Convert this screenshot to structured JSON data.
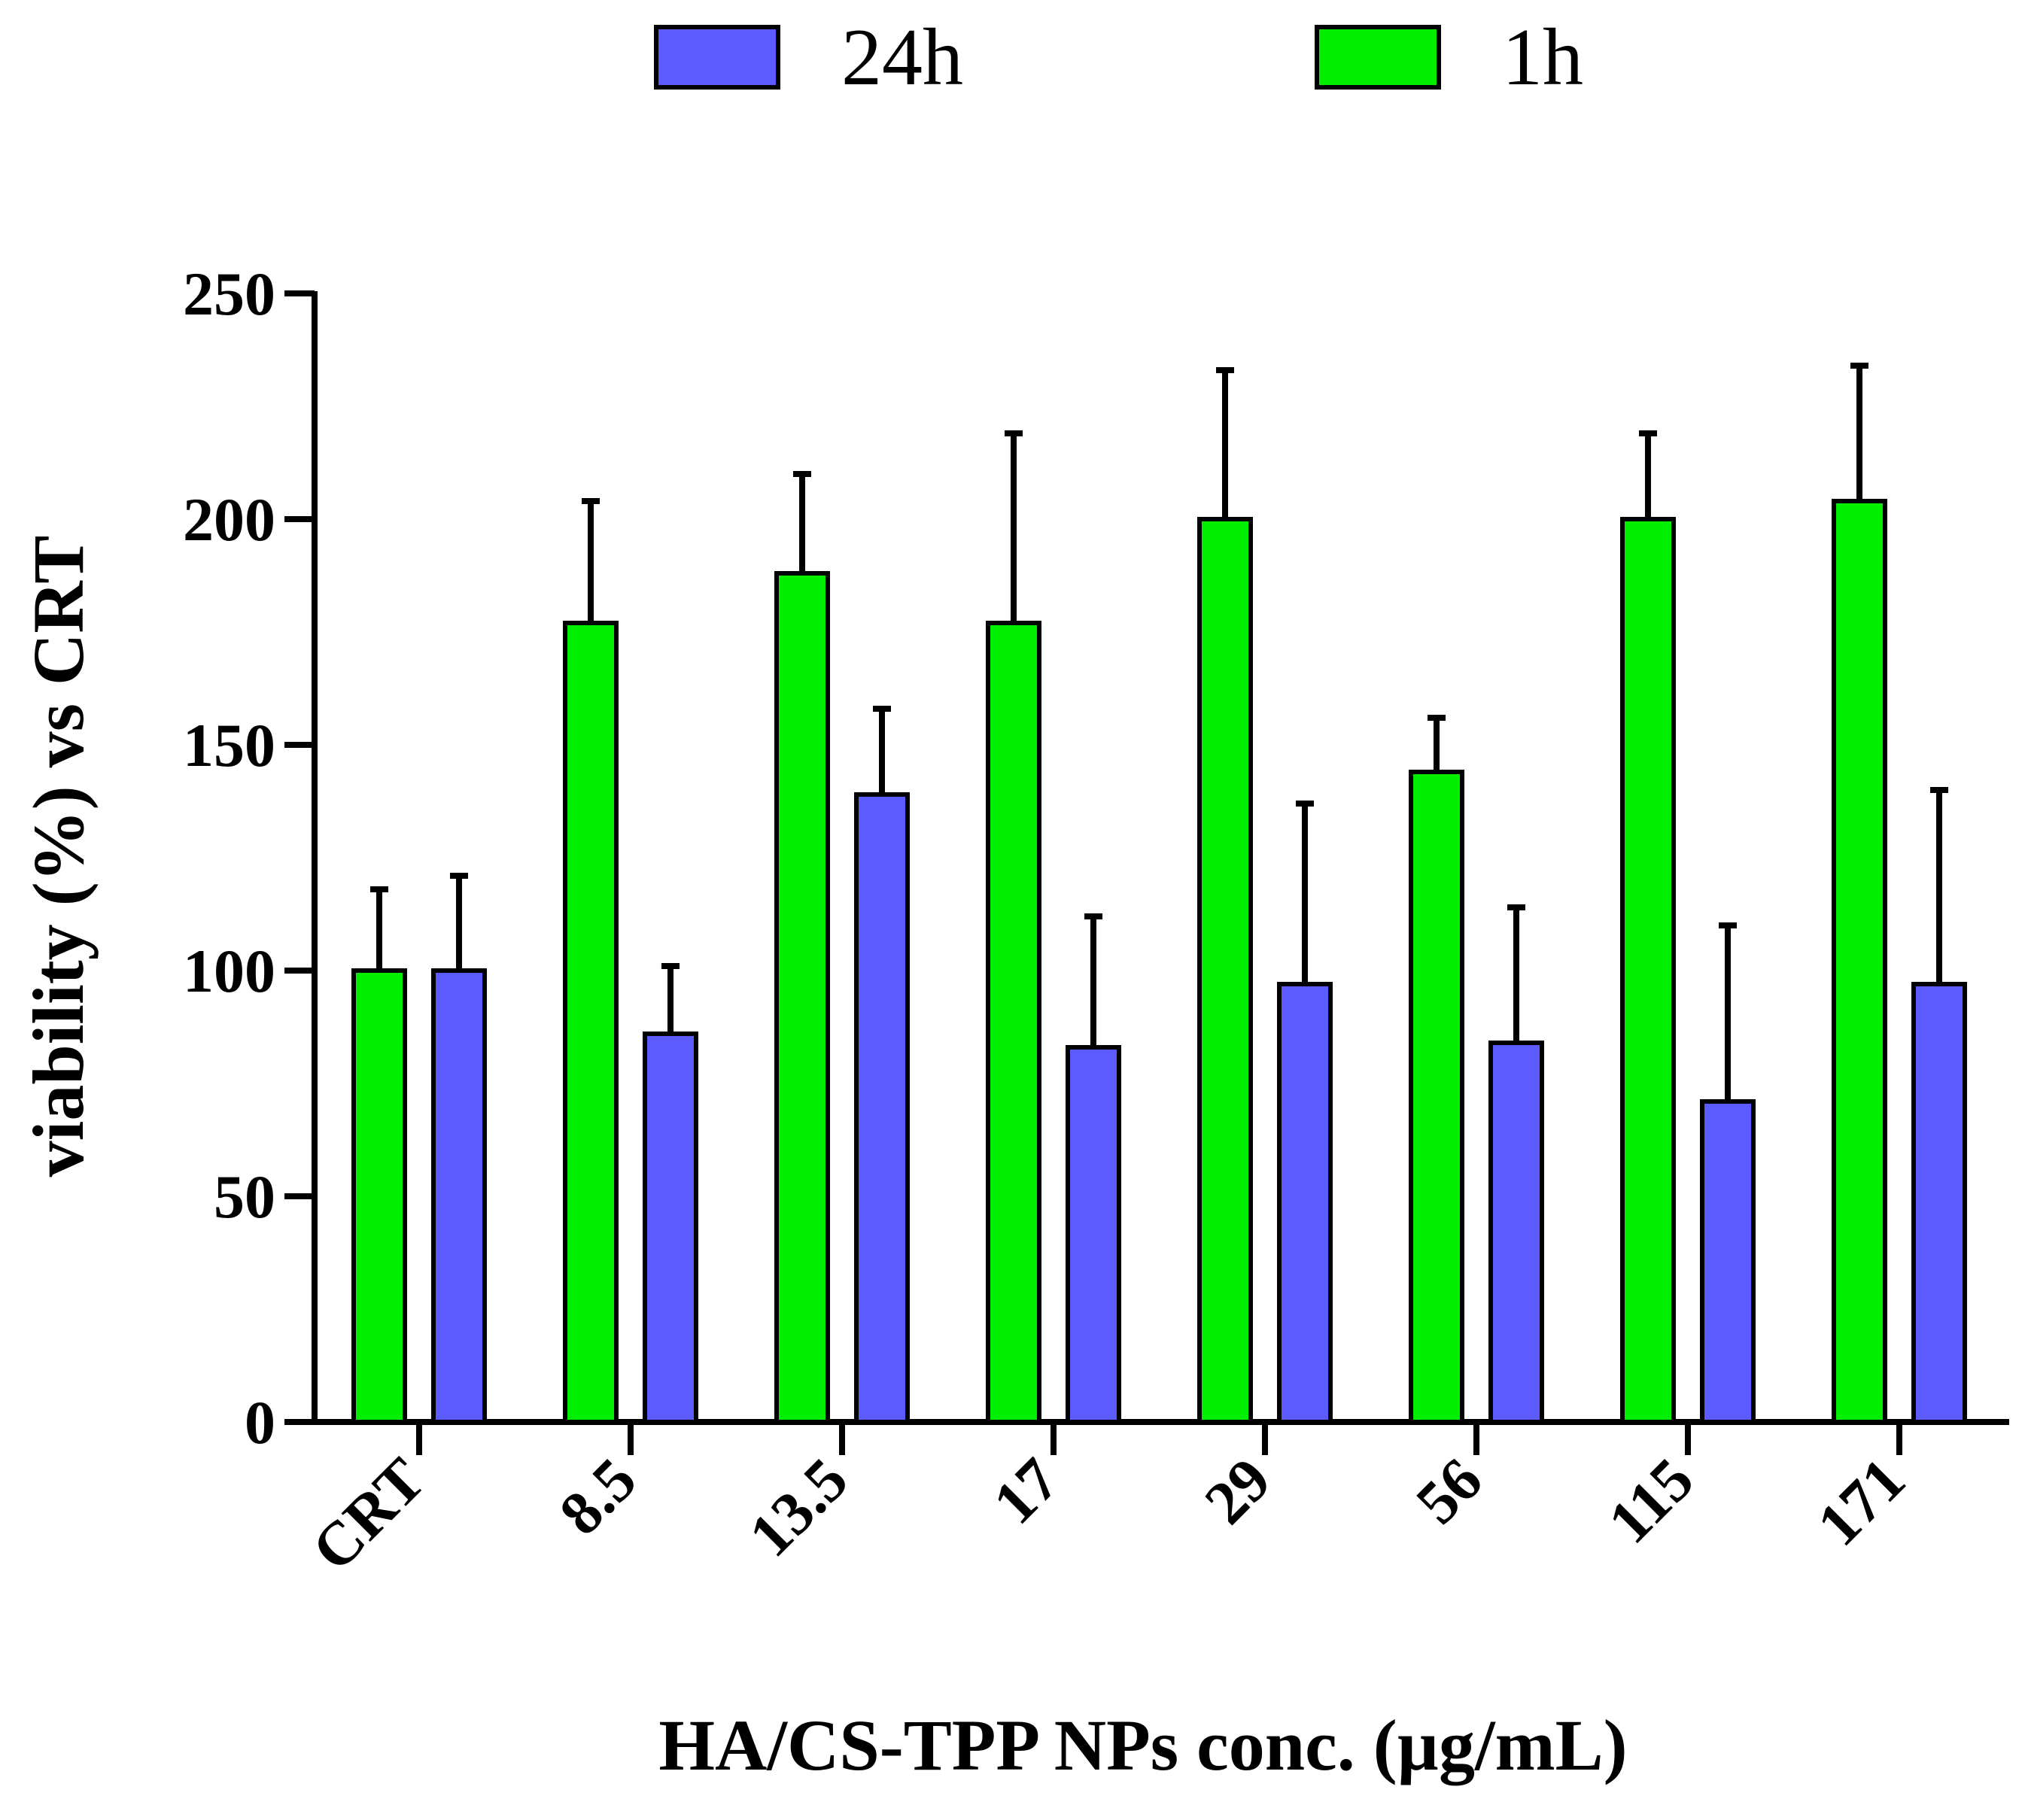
{
  "chart_data": {
    "type": "bar",
    "title": "",
    "xlabel": "HA/CS-TPP NPs conc. (µg/mL)",
    "ylabel": "viability (%) vs CRT",
    "ylim": [
      0,
      250
    ],
    "yticks": [
      0,
      50,
      100,
      150,
      200,
      250
    ],
    "categories": [
      "CRT",
      "8.5",
      "13.5",
      "17",
      "29",
      "56",
      "115",
      "171"
    ],
    "series": [
      {
        "name": "1h",
        "color": "#00ee00",
        "values": [
          100,
          177,
          188,
          177,
          200,
          144,
          200,
          204
        ],
        "errors": [
          18,
          27,
          22,
          42,
          33,
          12,
          19,
          30
        ]
      },
      {
        "name": "24h",
        "color": "#5b5bff",
        "values": [
          100,
          86,
          139,
          83,
          97,
          84,
          71,
          97
        ],
        "errors": [
          21,
          15,
          19,
          29,
          40,
          30,
          39,
          43
        ]
      }
    ],
    "legend": {
      "position": "top-center",
      "order": [
        "24h",
        "1h"
      ]
    },
    "grid": false
  }
}
